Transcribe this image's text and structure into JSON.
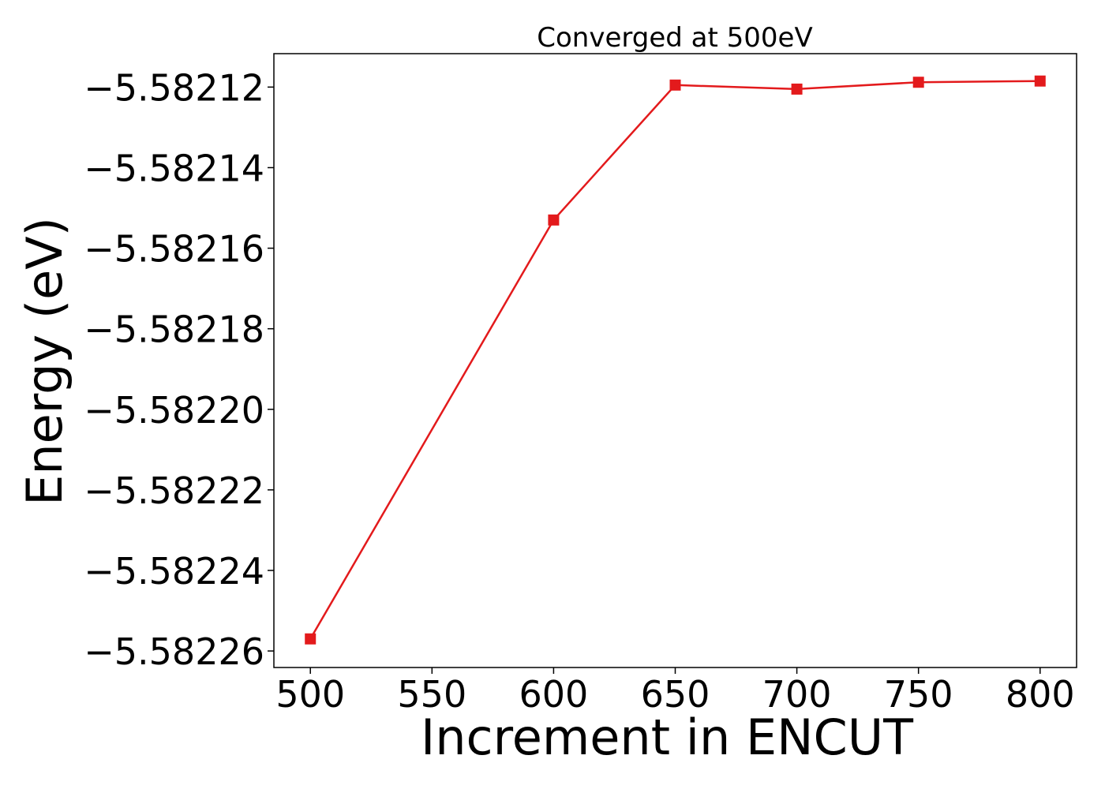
{
  "chart_data": {
    "type": "line",
    "title": "Converged at 500eV",
    "xlabel": "Increment in ENCUT",
    "ylabel": "Energy (eV)",
    "x": [
      500,
      600,
      650,
      700,
      750,
      800
    ],
    "series": [
      {
        "values": [
          -5.582257,
          -5.582153,
          -5.5821195,
          -5.5821205,
          -5.5821188,
          -5.5821185
        ],
        "color": "#e31a1c",
        "marker": "square"
      }
    ],
    "xlim": [
      485,
      815
    ],
    "ylim": [
      -5.5822641,
      -5.5821117
    ],
    "xticks": [
      "500",
      "550",
      "600",
      "650",
      "700",
      "750",
      "800"
    ],
    "yticks": [
      "−5.58212",
      "−5.58214",
      "−5.58216",
      "−5.58218",
      "−5.58220",
      "−5.58222",
      "−5.58224",
      "−5.58226"
    ],
    "xtick_values": [
      500,
      550,
      600,
      650,
      700,
      750,
      800
    ],
    "ytick_values": [
      -5.58212,
      -5.58214,
      -5.58216,
      -5.58218,
      -5.5822,
      -5.58222,
      -5.58224,
      -5.58226
    ],
    "grid": false,
    "legend": false
  }
}
